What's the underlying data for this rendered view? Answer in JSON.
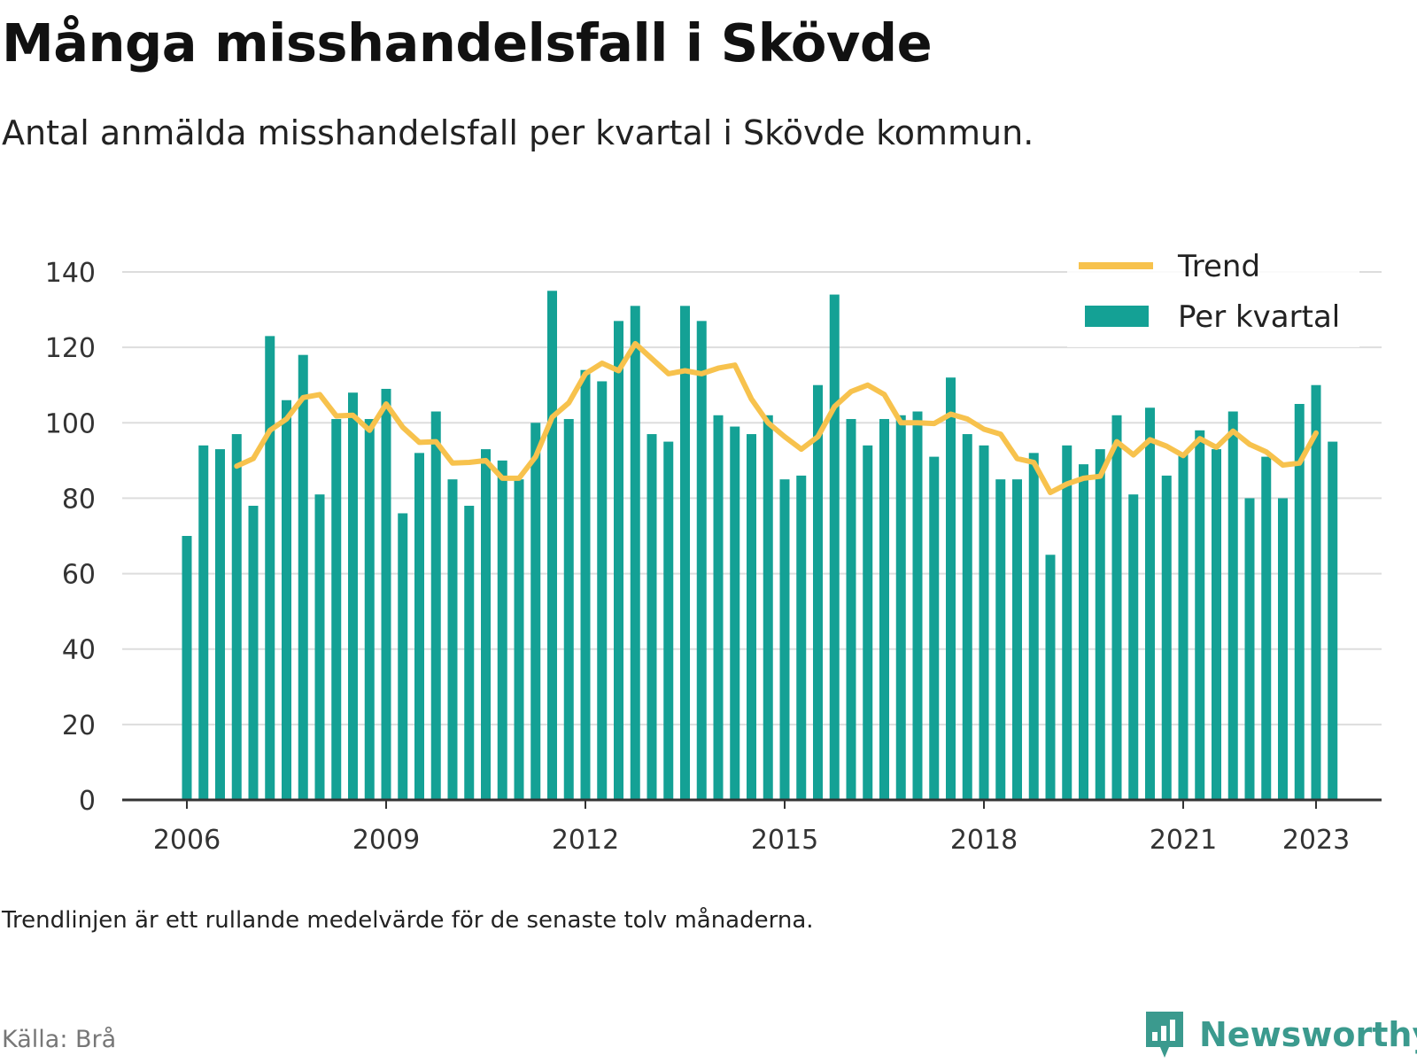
{
  "title": "Många misshandelsfall i Skövde",
  "subtitle": "Antal anmälda misshandelsfall per kvartal i Skövde kommun.",
  "note": "Trendlinjen är ett rullande medelvärde för de senaste tolv månaderna.",
  "source": "Källa: Brå",
  "brand": {
    "name": "Newsworthy",
    "icon": "newsworthy-logo-icon",
    "color": "#3b9a8e"
  },
  "chart_data": {
    "type": "bar",
    "title": "Många misshandelsfall i Skövde",
    "ylim": [
      0,
      140
    ],
    "yticks": [
      0,
      20,
      40,
      60,
      80,
      100,
      120,
      140
    ],
    "xticks": [
      "2006",
      "2009",
      "2012",
      "2015",
      "2018",
      "2021",
      "2023"
    ],
    "grid": true,
    "legend_position": "top-right",
    "colors": {
      "bars": "#14a195",
      "trend": "#f7c24d",
      "grid": "#dddddd",
      "axis": "#333333"
    },
    "categories": [
      "2006 Q1",
      "2006 Q2",
      "2006 Q3",
      "2006 Q4",
      "2007 Q1",
      "2007 Q2",
      "2007 Q3",
      "2007 Q4",
      "2008 Q1",
      "2008 Q2",
      "2008 Q3",
      "2008 Q4",
      "2009 Q1",
      "2009 Q2",
      "2009 Q3",
      "2009 Q4",
      "2010 Q1",
      "2010 Q2",
      "2010 Q3",
      "2010 Q4",
      "2011 Q1",
      "2011 Q2",
      "2011 Q3",
      "2011 Q4",
      "2012 Q1",
      "2012 Q2",
      "2012 Q3",
      "2012 Q4",
      "2013 Q1",
      "2013 Q2",
      "2013 Q3",
      "2013 Q4",
      "2014 Q1",
      "2014 Q2",
      "2014 Q3",
      "2014 Q4",
      "2015 Q1",
      "2015 Q2",
      "2015 Q3",
      "2015 Q4",
      "2016 Q1",
      "2016 Q2",
      "2016 Q3",
      "2016 Q4",
      "2017 Q1",
      "2017 Q2",
      "2017 Q3",
      "2017 Q4",
      "2018 Q1",
      "2018 Q2",
      "2018 Q3",
      "2018 Q4",
      "2019 Q1",
      "2019 Q2",
      "2019 Q3",
      "2019 Q4",
      "2020 Q1",
      "2020 Q2",
      "2020 Q3",
      "2020 Q4",
      "2021 Q1",
      "2021 Q2",
      "2021 Q3",
      "2021 Q4",
      "2022 Q1",
      "2022 Q2",
      "2022 Q3",
      "2022 Q4",
      "2023 Q1",
      "2023 Q2"
    ],
    "series": [
      {
        "name": "Per kvartal",
        "values": [
          70,
          94,
          93,
          97,
          78,
          123,
          106,
          118,
          81,
          101,
          108,
          101,
          109,
          76,
          92,
          103,
          85,
          78,
          93,
          90,
          85,
          100,
          135,
          101,
          114,
          111,
          127,
          131,
          97,
          95,
          131,
          127,
          102,
          99,
          97,
          102,
          85,
          86,
          110,
          134,
          101,
          94,
          101,
          102,
          103,
          91,
          112,
          97,
          94,
          85,
          85,
          92,
          65,
          94,
          89,
          93,
          102,
          81,
          104,
          86,
          92,
          98,
          93,
          103,
          80,
          91,
          80,
          105,
          110,
          95
        ]
      },
      {
        "name": "Trend",
        "values": [
          null,
          null,
          null,
          88.5,
          90.5,
          98,
          101,
          106.7,
          107.5,
          101.8,
          102,
          98,
          105,
          98.8,
          94.8,
          95,
          89.3,
          89.5,
          90,
          85.3,
          85.3,
          91,
          101.5,
          105.3,
          113,
          115.8,
          113.8,
          121,
          117,
          113,
          113.8,
          113,
          114.5,
          115.3,
          106.3,
          100,
          96.3,
          93,
          96.3,
          104.3,
          108.3,
          110,
          107.5,
          100,
          100,
          99.8,
          102.3,
          101,
          98.3,
          97,
          90.5,
          89.5,
          81.5,
          83.8,
          85.3,
          85.8,
          95,
          91.5,
          95.5,
          93.8,
          91.3,
          95.8,
          93.5,
          97.8,
          94.3,
          92.3,
          88.8,
          89.3,
          97.3,
          null
        ]
      }
    ]
  }
}
